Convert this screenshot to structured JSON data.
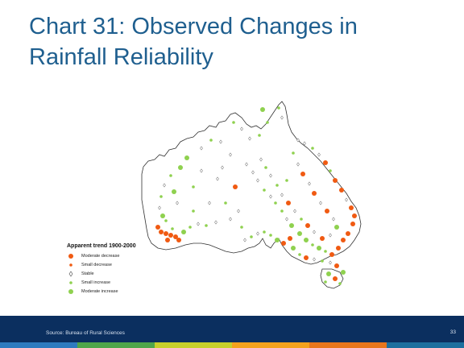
{
  "slide": {
    "title": "Chart 31: Observed Changes in Rainfall Reliability"
  },
  "legend": {
    "title": "Apparent trend 1900-2000",
    "items": [
      {
        "label": "Moderate decrease",
        "color": "#f05a12",
        "shape": "large-dot"
      },
      {
        "label": "Small decrease",
        "color": "#f05a12",
        "shape": "small-dot"
      },
      {
        "label": "Stable",
        "color": "#ffffff",
        "shape": "diamond"
      },
      {
        "label": "Small increase",
        "color": "#8fd14f",
        "shape": "small-dot"
      },
      {
        "label": "Moderate increase",
        "color": "#8fd14f",
        "shape": "large-dot"
      }
    ]
  },
  "footer": {
    "source": "Source: Bureau of Rural Sciences",
    "page_number": "33",
    "background": "#0b2f5f",
    "stripe_colors": [
      "#2e7bbf",
      "#4fa64a",
      "#c7cf2a",
      "#f4a21d",
      "#e8761c",
      "#1d6f9e"
    ]
  },
  "colors": {
    "title": "#1f5f8f",
    "decrease": "#f05a12",
    "increase": "#8fd14f",
    "coastline": "#333333"
  }
}
